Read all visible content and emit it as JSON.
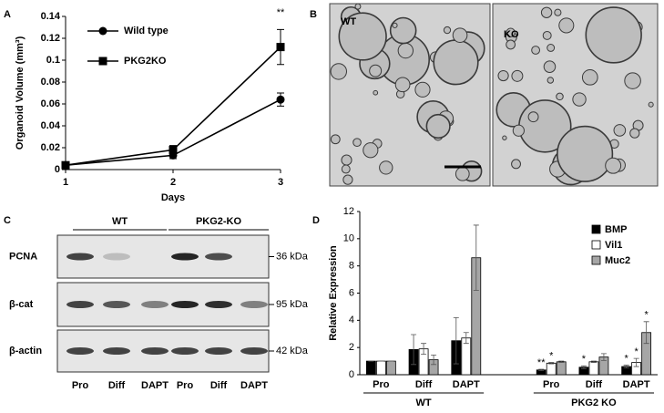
{
  "panel_labels": [
    "A",
    "B",
    "C",
    "D"
  ],
  "chart_data": [
    {
      "type": "line",
      "xlabel": "Days",
      "ylabel": "Organoid Volume (mm³)",
      "x": [
        1,
        2,
        3
      ],
      "xlim": [
        1,
        3
      ],
      "xticks": [
        1,
        2,
        3
      ],
      "ylim": [
        0,
        0.14
      ],
      "yticks": [
        0,
        0.02,
        0.04,
        0.06,
        0.08,
        0.1,
        0.12,
        0.14
      ],
      "legend": "upper left",
      "series": [
        {
          "name": "Wild type",
          "color": "#000000",
          "marker": "circle",
          "values": [
            0.004,
            0.013,
            0.064
          ],
          "errors": [
            0.001,
            0.003,
            0.006
          ]
        },
        {
          "name": "PKG2KO",
          "color": "#000000",
          "marker": "square",
          "values": [
            0.004,
            0.018,
            0.112
          ],
          "errors": [
            0.001,
            0.004,
            0.016
          ]
        }
      ],
      "annotations": [
        {
          "text": "**",
          "x": 3
        }
      ]
    },
    {
      "type": "bar",
      "ylabel": "Relative Expression",
      "categories": [
        "Pro",
        "Diff",
        "DAPT",
        "Pro",
        "Diff",
        "DAPT"
      ],
      "groups": [
        {
          "label": "WT",
          "size": 3
        },
        {
          "label": "PKG2 KO",
          "size": 3
        }
      ],
      "ylim": [
        0,
        12
      ],
      "yticks": [
        0,
        2,
        4,
        6,
        8,
        10,
        12
      ],
      "legend": "upper right",
      "series": [
        {
          "name": "BMP",
          "color": "#000000",
          "values": [
            1,
            1.85,
            2.5,
            0.35,
            0.55,
            0.6
          ],
          "errors": [
            0,
            1.1,
            1.7,
            0.05,
            0.1,
            0.1
          ],
          "significance": [
            null,
            null,
            null,
            "**",
            "*",
            "*"
          ]
        },
        {
          "name": "Vil1",
          "color": "#ffffff",
          "values": [
            1,
            1.9,
            2.7,
            0.85,
            0.95,
            0.9
          ],
          "errors": [
            0,
            0.4,
            0.4,
            0.05,
            0.05,
            0.3
          ],
          "significance": [
            null,
            null,
            null,
            "*",
            null,
            "*"
          ]
        },
        {
          "name": "Muc2",
          "color": "#a6a6a6",
          "values": [
            1,
            1.1,
            8.6,
            0.95,
            1.3,
            3.1
          ],
          "errors": [
            0,
            0.35,
            2.4,
            0.05,
            0.25,
            0.8
          ],
          "significance": [
            null,
            null,
            null,
            null,
            null,
            "*"
          ]
        }
      ]
    }
  ],
  "images": [
    {
      "label": "WT"
    },
    {
      "label": "KO"
    }
  ],
  "blot": {
    "groups": [
      {
        "label": "WT"
      },
      {
        "label": "PKG2-KO"
      }
    ],
    "rows": [
      {
        "label": "PCNA",
        "size": "36 kDa"
      },
      {
        "label": "β-cat",
        "size": "95 kDa"
      },
      {
        "label": "β-actin",
        "size": "42 kDa"
      }
    ],
    "lanes": [
      "Pro",
      "Diff",
      "DAPT",
      "Pro",
      "Diff",
      "DAPT"
    ]
  }
}
